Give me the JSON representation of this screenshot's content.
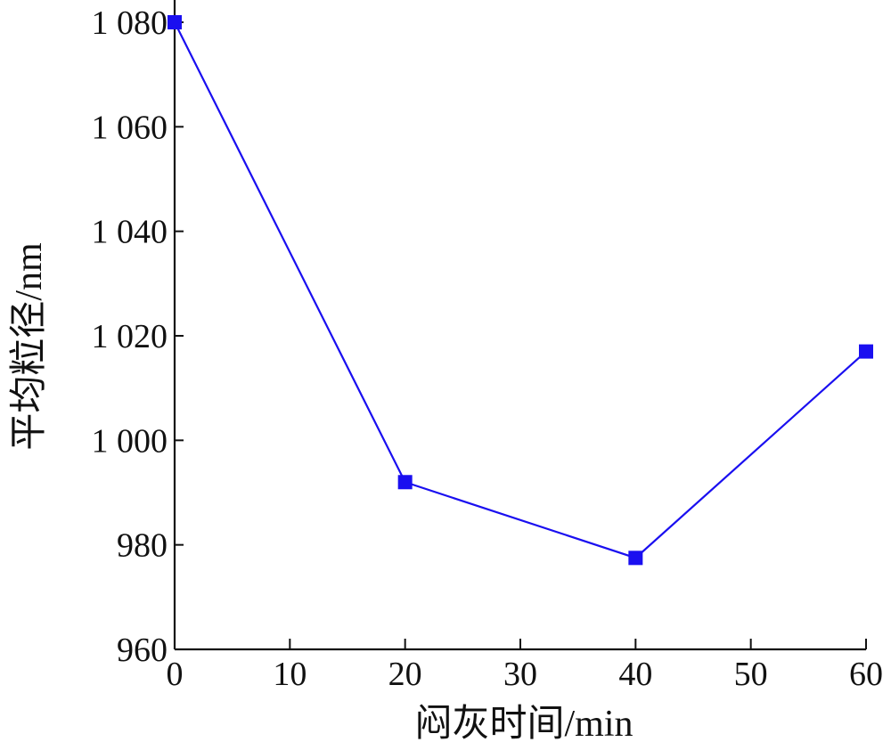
{
  "chart_data": {
    "type": "line",
    "xlabel": "闷灰时间/min",
    "ylabel": "平均粒径/nm",
    "xlim": [
      0,
      60
    ],
    "ylim": [
      960,
      1080
    ],
    "xticks": [
      0,
      10,
      20,
      30,
      40,
      50,
      60
    ],
    "yticks": [
      960,
      980,
      1000,
      1020,
      1040,
      1060,
      1080
    ],
    "xtick_labels": [
      "0",
      "10",
      "20",
      "30",
      "40",
      "50",
      "60"
    ],
    "ytick_labels": [
      "960",
      "980",
      "1 000",
      "1 020",
      "1 040",
      "1 060",
      "1 080"
    ],
    "grid": false,
    "series": [
      {
        "x": [
          0,
          20,
          40,
          60
        ],
        "values": [
          1080,
          992,
          977.5,
          1017
        ],
        "color": "#1a0ff0",
        "marker": "square"
      }
    ]
  }
}
